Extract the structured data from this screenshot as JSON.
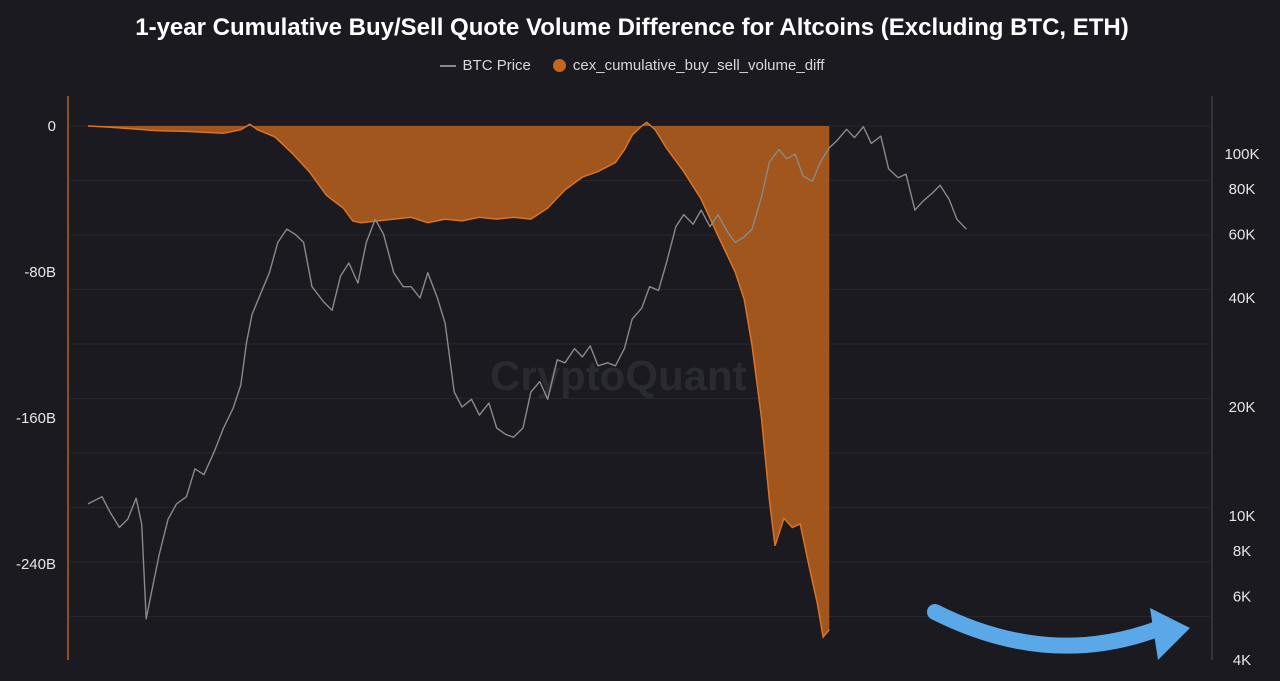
{
  "chart_data": {
    "type": "area",
    "title": "1-year Cumulative Buy/Sell Quote Volume Difference for Altcoins (Excluding BTC, ETH)",
    "watermark": "CryptoQuant",
    "legend_position": "top-center",
    "grid": true,
    "colors": {
      "background": "#1a1a20",
      "area_fill": "#a85a1c",
      "area_line": "#d9742a",
      "btc_line": "#8a8a8a",
      "annotation_arrow": "#5aa8e8"
    },
    "y_left": {
      "label": "",
      "ticks": [
        "0",
        "-80B",
        "-160B",
        "-240B"
      ],
      "tick_values": [
        0,
        -80,
        -160,
        -240
      ],
      "unit": "B",
      "range": [
        -290,
        10
      ]
    },
    "y_right": {
      "label": "",
      "scale": "log",
      "ticks": [
        "100K",
        "80K",
        "60K",
        "40K",
        "20K",
        "10K",
        "8K",
        "6K",
        "4K"
      ],
      "tick_values": [
        100000,
        80000,
        60000,
        40000,
        20000,
        10000,
        8000,
        6000,
        4000
      ]
    },
    "x": {
      "range": [
        "2020-09-15",
        "2026-02-15"
      ],
      "ticks": []
    },
    "series": [
      {
        "name": "BTC Price",
        "axis": "right",
        "kind": "line",
        "points": [
          [
            "2020-09-15",
            10800
          ],
          [
            "2020-10-10",
            11300
          ],
          [
            "2020-10-25",
            10200
          ],
          [
            "2020-11-10",
            9300
          ],
          [
            "2020-11-25",
            9800
          ],
          [
            "2020-12-10",
            11200
          ],
          [
            "2020-12-20",
            9500
          ],
          [
            "2020-12-28",
            5200
          ],
          [
            "2021-01-05",
            6000
          ],
          [
            "2021-01-20",
            7800
          ],
          [
            "2021-02-05",
            9800
          ],
          [
            "2021-02-20",
            10800
          ],
          [
            "2021-03-10",
            11300
          ],
          [
            "2021-03-25",
            13500
          ],
          [
            "2021-04-10",
            13000
          ],
          [
            "2021-04-28",
            15000
          ],
          [
            "2021-05-15",
            17500
          ],
          [
            "2021-06-01",
            19800
          ],
          [
            "2021-06-15",
            23000
          ],
          [
            "2021-06-25",
            30000
          ],
          [
            "2021-07-05",
            36000
          ],
          [
            "2021-07-20",
            41000
          ],
          [
            "2021-08-05",
            47000
          ],
          [
            "2021-08-20",
            57000
          ],
          [
            "2021-09-05",
            62000
          ],
          [
            "2021-09-20",
            60000
          ],
          [
            "2021-10-05",
            57000
          ],
          [
            "2021-10-20",
            43000
          ],
          [
            "2021-11-10",
            39000
          ],
          [
            "2021-11-25",
            37000
          ],
          [
            "2021-12-10",
            46000
          ],
          [
            "2021-12-25",
            50000
          ],
          [
            "2022-01-10",
            44000
          ],
          [
            "2022-01-25",
            57000
          ],
          [
            "2022-02-10",
            66000
          ],
          [
            "2022-02-25",
            60000
          ],
          [
            "2022-03-15",
            47000
          ],
          [
            "2022-04-01",
            43000
          ],
          [
            "2022-04-15",
            43000
          ],
          [
            "2022-05-01",
            40000
          ],
          [
            "2022-05-15",
            47000
          ],
          [
            "2022-06-01",
            40000
          ],
          [
            "2022-06-15",
            34000
          ],
          [
            "2022-07-01",
            22000
          ],
          [
            "2022-07-15",
            20000
          ],
          [
            "2022-08-01",
            21000
          ],
          [
            "2022-08-15",
            19000
          ],
          [
            "2022-09-01",
            20500
          ],
          [
            "2022-09-15",
            17500
          ],
          [
            "2022-10-01",
            16800
          ],
          [
            "2022-10-15",
            16500
          ],
          [
            "2022-11-01",
            17500
          ],
          [
            "2022-11-15",
            22000
          ],
          [
            "2022-12-01",
            23500
          ],
          [
            "2022-12-15",
            21000
          ],
          [
            "2023-01-01",
            27000
          ],
          [
            "2023-01-15",
            26500
          ],
          [
            "2023-02-01",
            29000
          ],
          [
            "2023-02-15",
            27500
          ],
          [
            "2023-03-01",
            29500
          ],
          [
            "2023-03-15",
            26000
          ],
          [
            "2023-04-01",
            26500
          ],
          [
            "2023-04-15",
            26000
          ],
          [
            "2023-05-01",
            29000
          ],
          [
            "2023-05-15",
            35000
          ],
          [
            "2023-06-01",
            37500
          ],
          [
            "2023-06-15",
            43000
          ],
          [
            "2023-07-01",
            42000
          ],
          [
            "2023-07-15",
            50000
          ],
          [
            "2023-08-01",
            63000
          ],
          [
            "2023-08-15",
            68000
          ],
          [
            "2023-09-01",
            64000
          ],
          [
            "2023-09-15",
            70000
          ],
          [
            "2023-10-01",
            63000
          ],
          [
            "2023-10-15",
            68000
          ],
          [
            "2023-11-01",
            61000
          ],
          [
            "2023-11-15",
            57000
          ],
          [
            "2023-12-01",
            59000
          ],
          [
            "2023-12-15",
            62000
          ],
          [
            "2024-01-01",
            76000
          ],
          [
            "2024-01-15",
            95000
          ],
          [
            "2024-02-01",
            103000
          ],
          [
            "2024-02-15",
            97000
          ],
          [
            "2024-03-01",
            100000
          ],
          [
            "2024-03-15",
            87000
          ],
          [
            "2024-04-01",
            84000
          ],
          [
            "2024-04-15",
            95000
          ],
          [
            "2024-05-01",
            104000
          ],
          [
            "2024-05-15",
            109000
          ],
          [
            "2024-06-01",
            117000
          ],
          [
            "2024-06-15",
            111000
          ],
          [
            "2024-07-01",
            119000
          ],
          [
            "2024-07-15",
            107000
          ],
          [
            "2024-08-01",
            112000
          ],
          [
            "2024-08-15",
            91000
          ],
          [
            "2024-09-01",
            86000
          ],
          [
            "2024-09-15",
            88000
          ],
          [
            "2024-10-01",
            70000
          ],
          [
            "2024-10-15",
            74000
          ],
          [
            "2024-11-01",
            78000
          ],
          [
            "2024-11-15",
            82000
          ],
          [
            "2024-12-01",
            75000
          ],
          [
            "2024-12-15",
            66000
          ],
          [
            "2025-01-01",
            62000
          ]
        ]
      },
      {
        "name": "cex_cumulative_buy_sell_volume_diff",
        "axis": "left",
        "kind": "area",
        "unit": "B",
        "points": [
          [
            "2020-09-15",
            0
          ],
          [
            "2020-10-15",
            -0.5
          ],
          [
            "2020-12-01",
            -1.5
          ],
          [
            "2021-01-15",
            -2.5
          ],
          [
            "2021-03-15",
            -3
          ],
          [
            "2021-05-15",
            -4
          ],
          [
            "2021-06-15",
            -2
          ],
          [
            "2021-07-01",
            1
          ],
          [
            "2021-07-15",
            -2
          ],
          [
            "2021-08-15",
            -6
          ],
          [
            "2021-09-15",
            -15
          ],
          [
            "2021-10-15",
            -25
          ],
          [
            "2021-11-15",
            -38
          ],
          [
            "2021-12-15",
            -45
          ],
          [
            "2022-01-01",
            -52
          ],
          [
            "2022-01-15",
            -53
          ],
          [
            "2022-02-15",
            -52
          ],
          [
            "2022-03-15",
            -51
          ],
          [
            "2022-04-15",
            -50
          ],
          [
            "2022-05-15",
            -53
          ],
          [
            "2022-06-15",
            -51
          ],
          [
            "2022-07-15",
            -52
          ],
          [
            "2022-08-15",
            -50
          ],
          [
            "2022-09-15",
            -51
          ],
          [
            "2022-10-15",
            -50
          ],
          [
            "2022-11-15",
            -51
          ],
          [
            "2022-12-15",
            -45
          ],
          [
            "2023-01-15",
            -35
          ],
          [
            "2023-02-15",
            -28
          ],
          [
            "2023-03-15",
            -25
          ],
          [
            "2023-04-15",
            -20
          ],
          [
            "2023-05-01",
            -13
          ],
          [
            "2023-05-15",
            -5
          ],
          [
            "2023-06-01",
            0
          ],
          [
            "2023-06-10",
            2
          ],
          [
            "2023-06-25",
            -2
          ],
          [
            "2023-07-15",
            -12
          ],
          [
            "2023-08-15",
            -25
          ],
          [
            "2023-09-15",
            -40
          ],
          [
            "2023-10-15",
            -60
          ],
          [
            "2023-11-15",
            -80
          ],
          [
            "2023-12-01",
            -95
          ],
          [
            "2023-12-15",
            -120
          ],
          [
            "2024-01-01",
            -160
          ],
          [
            "2024-01-15",
            -205
          ],
          [
            "2024-01-25",
            -230
          ],
          [
            "2024-02-10",
            -215
          ],
          [
            "2024-02-25",
            -220
          ],
          [
            "2024-03-10",
            -218
          ],
          [
            "2024-03-25",
            -240
          ],
          [
            "2024-04-10",
            -262
          ],
          [
            "2024-04-20",
            -280
          ],
          [
            "2024-05-01",
            -276
          ]
        ]
      }
    ],
    "annotations": [
      {
        "type": "arrow",
        "description_color": "#5aa8e8",
        "target_series": "cex_cumulative_buy_sell_volume_diff"
      }
    ]
  }
}
